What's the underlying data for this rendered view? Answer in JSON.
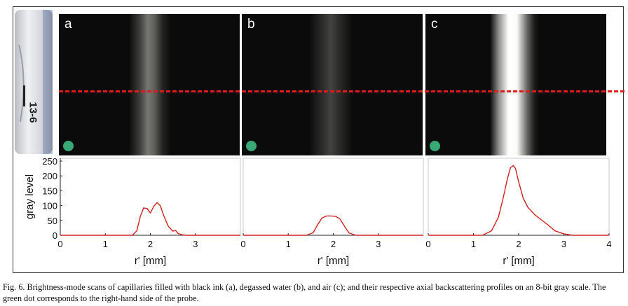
{
  "probe": {
    "label": "13-6"
  },
  "panels": [
    {
      "letter": "a"
    },
    {
      "letter": "b"
    },
    {
      "letter": "c"
    }
  ],
  "colors": {
    "dash": "#e01b1b",
    "curve": "#d02020",
    "dot": "#3aa874",
    "bmode_bg": "#0a0b0a"
  },
  "chart_data": [
    {
      "type": "line",
      "xlabel": "r' [mm]",
      "ylabel": "gray level",
      "xlim": [
        0,
        4
      ],
      "ylim": [
        0,
        250
      ],
      "xticks": [
        "0",
        "1",
        "2",
        "3"
      ],
      "yticks": [
        "0",
        "50",
        "100",
        "150",
        "200",
        "250"
      ],
      "series": [
        {
          "x": [
            0,
            1.6,
            1.7,
            1.78,
            1.85,
            1.93,
            2.0,
            2.08,
            2.15,
            2.22,
            2.3,
            2.4,
            2.5,
            2.56,
            2.62,
            2.7,
            2.8,
            4
          ],
          "values": [
            0,
            0,
            15,
            65,
            92,
            90,
            75,
            98,
            110,
            100,
            65,
            30,
            14,
            16,
            6,
            2,
            0,
            0
          ]
        }
      ]
    },
    {
      "type": "line",
      "xlabel": "r' [mm]",
      "xlim": [
        0,
        4
      ],
      "ylim": [
        0,
        250
      ],
      "xticks": [
        "0",
        "1",
        "2",
        "3"
      ],
      "series": [
        {
          "x": [
            0,
            1.4,
            1.55,
            1.65,
            1.75,
            1.85,
            1.95,
            2.05,
            2.15,
            2.25,
            2.35,
            2.5,
            4
          ],
          "values": [
            0,
            0,
            8,
            35,
            58,
            65,
            65,
            64,
            55,
            30,
            8,
            0,
            0
          ]
        }
      ]
    },
    {
      "type": "line",
      "xlabel": "r' [mm]",
      "xlim": [
        0,
        4
      ],
      "ylim": [
        0,
        250
      ],
      "xticks": [
        "0",
        "1",
        "2",
        "3",
        "4"
      ],
      "series": [
        {
          "x": [
            0,
            1.2,
            1.4,
            1.55,
            1.65,
            1.75,
            1.82,
            1.88,
            1.93,
            2.0,
            2.1,
            2.2,
            2.35,
            2.5,
            2.65,
            2.8,
            3.0,
            3.2,
            4
          ],
          "values": [
            0,
            0,
            15,
            60,
            120,
            190,
            228,
            235,
            225,
            180,
            125,
            95,
            70,
            52,
            35,
            15,
            5,
            0,
            0
          ]
        }
      ]
    }
  ],
  "caption": "Fig. 6.  Brightness-mode scans of capillaries filled with black ink (a), degassed water (b), and air (c); and their respective axial backscattering profiles on an 8-bit gray scale. The green dot corresponds to the right-hand side of the probe."
}
